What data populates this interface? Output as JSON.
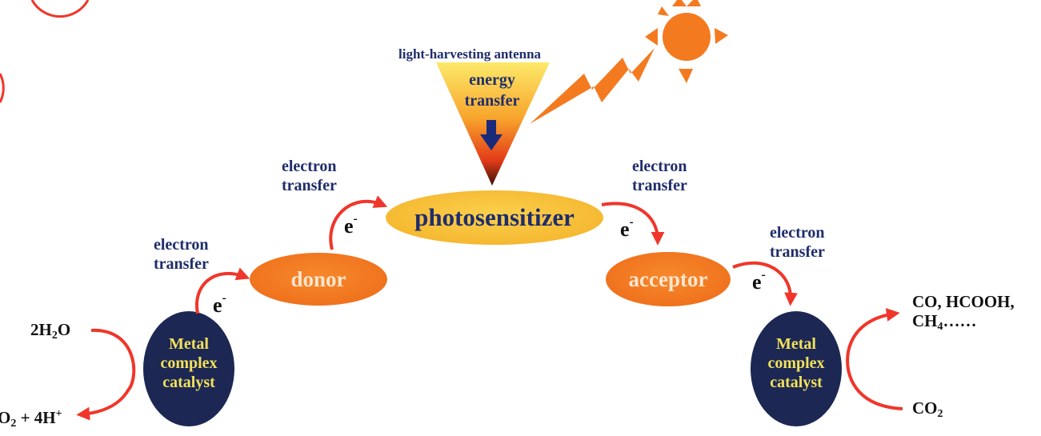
{
  "antenna": {
    "title": "light-harvesting antenna",
    "inner_line1": "energy",
    "inner_line2": "transfer"
  },
  "photosensitizer": {
    "label": "photosensitizer"
  },
  "donor": {
    "label": "donor"
  },
  "acceptor": {
    "label": "acceptor"
  },
  "electron_transfer": {
    "line1": "electron",
    "line2": "transfer"
  },
  "electron_symbol": "e",
  "electron_charge": "-",
  "catalyst": {
    "line1": "Metal",
    "line2": "complex",
    "line3": "catalyst"
  },
  "left_reaction": {
    "reactant": "2H",
    "reactant_sub": "2",
    "reactant_tail": "O",
    "product_head": "O",
    "product_sub": "2",
    "product_tail": " + 4H",
    "product_sup": "+"
  },
  "right_reaction": {
    "products_line1": "CO, HCOOH,",
    "products_line2_head": "CH",
    "products_line2_sub": "4",
    "products_line2_tail": "……",
    "reactant_head": "CO",
    "reactant_sub": "2"
  },
  "colors": {
    "orange": "#f47a20",
    "yellow": "#f8c23c",
    "navy": "#1c2754",
    "red_arrow": "#f0362a",
    "text_blue": "#1f2d6b",
    "catalyst_text": "#f2e15a"
  }
}
